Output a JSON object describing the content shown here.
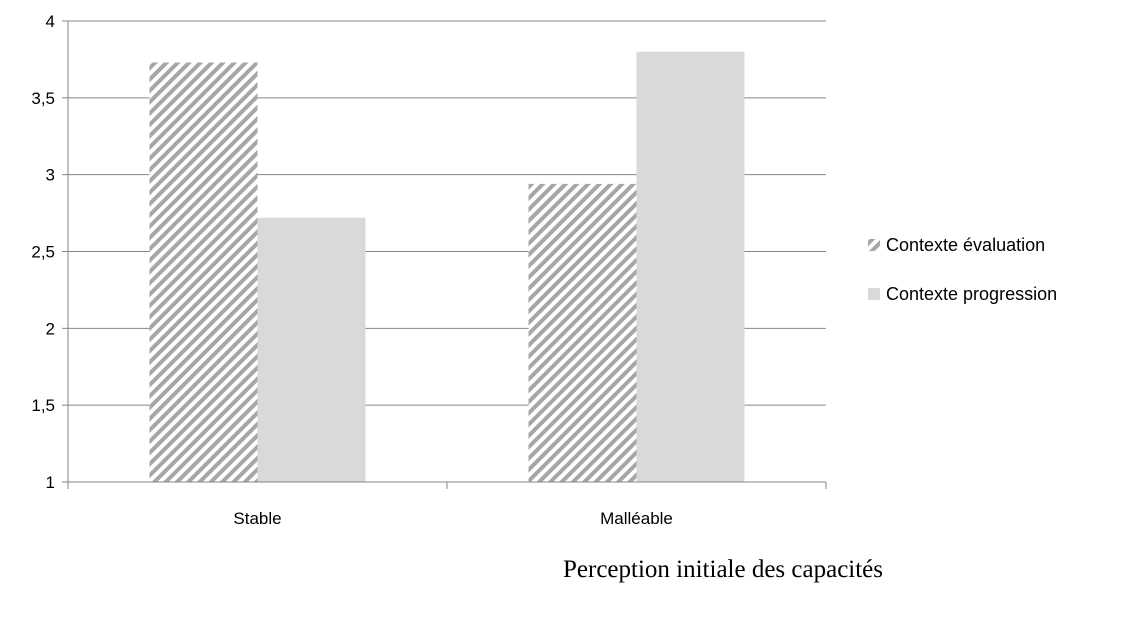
{
  "chart_data": {
    "type": "bar",
    "categories": [
      "Stable",
      "Malléable"
    ],
    "series": [
      {
        "name": "Contexte évaluation",
        "values": [
          3.73,
          2.94
        ],
        "fill": "hatch",
        "color": "#a6a6a6"
      },
      {
        "name": "Contexte progression",
        "values": [
          2.72,
          3.8
        ],
        "fill": "solid",
        "color": "#d9d9d9"
      }
    ],
    "ylim": [
      1,
      4
    ],
    "yticks": [
      1,
      1.5,
      2,
      2.5,
      3,
      3.5,
      4
    ],
    "ytick_labels": [
      "1",
      "1,5",
      "2",
      "2,5",
      "3",
      "3,5",
      "4"
    ],
    "grid": true,
    "legend_position": "right",
    "xlabel": "Perception initiale des capacités",
    "ylabel": "",
    "title": ""
  }
}
